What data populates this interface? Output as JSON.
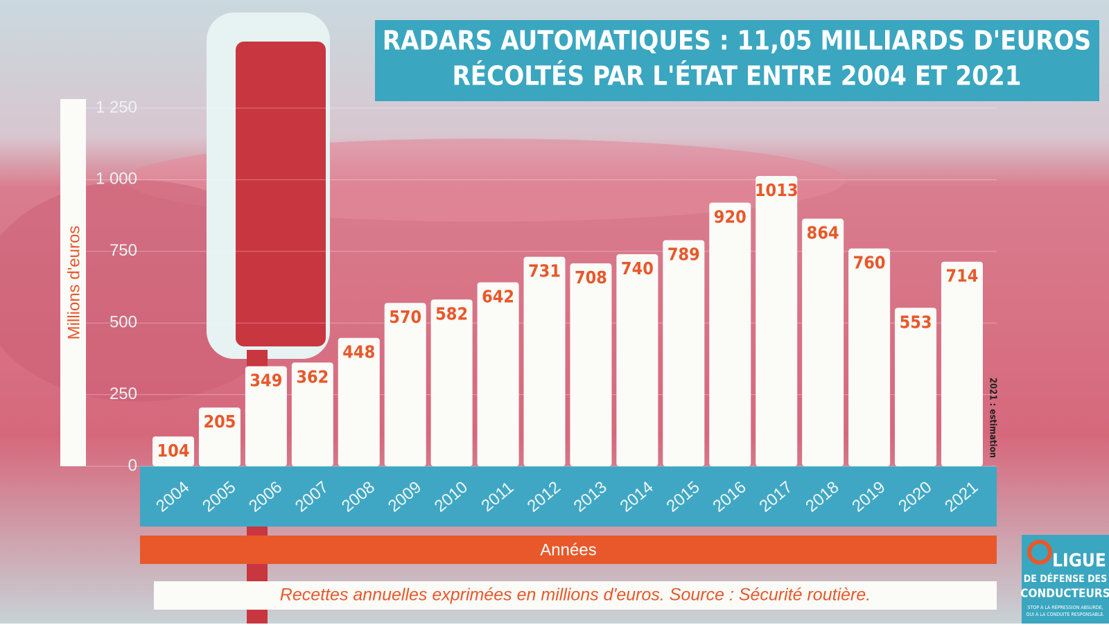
{
  "chart_data": {
    "type": "bar",
    "title": [
      "RADARS AUTOMATIQUES : 11,05 MILLIARDS D'EUROS",
      "RÉCOLTÉS PAR L'ÉTAT ENTRE 2004 ET 2021"
    ],
    "y_label": "Millions d'euros",
    "x_label": "Années",
    "annotation": "2021 : estimation",
    "source": "Recettes annuelles exprimées en millions d'euros. Source : Sécurité routière.",
    "categories": [
      "2004",
      "2005",
      "2006",
      "2007",
      "2008",
      "2009",
      "2010",
      "2011",
      "2012",
      "2013",
      "2014",
      "2015",
      "2016",
      "2017",
      "2018",
      "2019",
      "2020",
      "2021"
    ],
    "values": [
      104,
      205,
      349,
      362,
      448,
      570,
      582,
      642,
      731,
      708,
      740,
      789,
      920,
      1013,
      864,
      760,
      553,
      714
    ],
    "color": "#fbfbf8",
    "label_color": "#e8582a",
    "ylim": [
      0,
      1250
    ],
    "yticks": [
      0,
      250,
      500,
      750,
      {
        "value": 1000,
        "label": "1 000"
      },
      {
        "value": 1250,
        "label": "1 250"
      }
    ],
    "grid": true
  },
  "logo": {
    "lines": [
      "LIGUE",
      "DE DÉFENSE DES",
      "CONDUCTEURS"
    ],
    "tagline": [
      "STOP À LA RÉPRESSION ABSURDE,",
      "OUI À LA CONDUITE RESPONSABLE."
    ]
  }
}
